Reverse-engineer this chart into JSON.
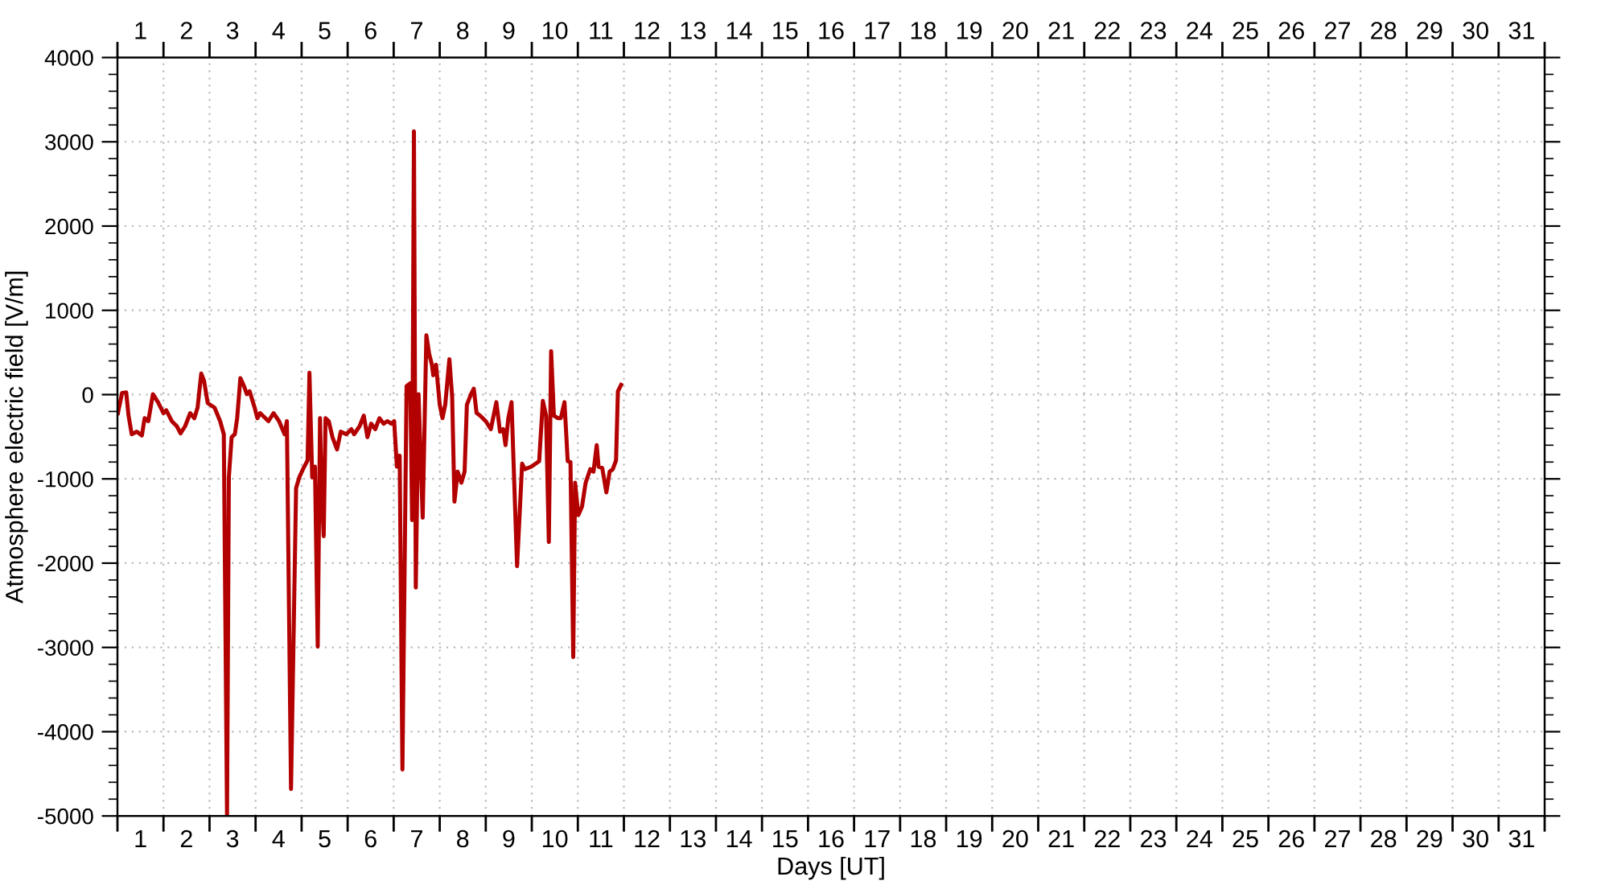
{
  "chart_data": {
    "type": "line",
    "xlabel": "Days [UT]",
    "ylabel": "Atmosphere electric field [V/m]",
    "x": [
      1.01,
      1.1,
      1.19,
      1.24,
      1.31,
      1.42,
      1.53,
      1.59,
      1.67,
      1.77,
      1.88,
      2.0,
      2.06,
      2.18,
      2.29,
      2.37,
      2.47,
      2.58,
      2.67,
      2.74,
      2.82,
      2.88,
      2.96,
      3.11,
      3.23,
      3.31,
      3.38,
      3.42,
      3.48,
      3.55,
      3.6,
      3.67,
      3.75,
      3.81,
      3.87,
      3.98,
      4.04,
      4.1,
      4.28,
      4.39,
      4.51,
      4.63,
      4.68,
      4.77,
      4.88,
      4.95,
      5.03,
      5.13,
      5.17,
      5.23,
      5.29,
      5.35,
      5.4,
      5.43,
      5.48,
      5.52,
      5.59,
      5.67,
      5.77,
      5.85,
      5.97,
      6.08,
      6.14,
      6.26,
      6.35,
      6.43,
      6.51,
      6.6,
      6.69,
      6.78,
      6.86,
      6.95,
      7.01,
      7.07,
      7.13,
      7.19,
      7.28,
      7.36,
      7.4,
      7.44,
      7.48,
      7.54,
      7.63,
      7.71,
      7.77,
      7.83,
      7.86,
      7.92,
      8.0,
      8.06,
      8.12,
      8.21,
      8.27,
      8.32,
      8.39,
      8.47,
      8.54,
      8.59,
      8.68,
      8.74,
      8.8,
      8.88,
      9.0,
      9.11,
      9.23,
      9.31,
      9.38,
      9.43,
      9.49,
      9.56,
      9.68,
      9.79,
      9.85,
      9.99,
      10.16,
      10.24,
      10.31,
      10.37,
      10.42,
      10.48,
      10.57,
      10.63,
      10.71,
      10.78,
      10.84,
      10.9,
      10.94,
      11.01,
      11.09,
      11.17,
      11.27,
      11.34,
      11.41,
      11.45,
      11.53,
      11.62,
      11.69,
      11.76,
      11.83,
      11.87,
      11.94
    ],
    "series": [
      {
        "color": "#b30000",
        "values": [
          -220,
          20,
          25,
          -245,
          -470,
          -440,
          -485,
          -280,
          -315,
          5,
          -90,
          -220,
          -185,
          -315,
          -375,
          -460,
          -375,
          -220,
          -280,
          -155,
          250,
          165,
          -100,
          -155,
          -315,
          -470,
          -4990,
          -980,
          -505,
          -470,
          -280,
          195,
          100,
          5,
          40,
          -155,
          -280,
          -220,
          -315,
          -220,
          -315,
          -470,
          -315,
          -4680,
          -1110,
          -980,
          -885,
          -780,
          260,
          -980,
          -855,
          -2990,
          -280,
          -1045,
          -1680,
          -280,
          -315,
          -505,
          -650,
          -440,
          -470,
          -410,
          -470,
          -375,
          -250,
          -505,
          -345,
          -410,
          -280,
          -345,
          -315,
          -345,
          -315,
          -855,
          -725,
          -4450,
          100,
          135,
          -1490,
          3125,
          -2290,
          5,
          -1460,
          705,
          485,
          355,
          230,
          355,
          -120,
          -280,
          -120,
          420,
          -25,
          -1270,
          -915,
          -1045,
          -915,
          -120,
          5,
          70,
          -218,
          -250,
          -315,
          -410,
          -90,
          -440,
          -410,
          -600,
          -280,
          -90,
          -2035,
          -820,
          -885,
          -855,
          -790,
          -75,
          -250,
          -1750,
          515,
          -250,
          -280,
          -280,
          -90,
          -790,
          -800,
          -3115,
          -1045,
          -1430,
          -1330,
          -1045,
          -885,
          -915,
          -600,
          -855,
          -870,
          -1160,
          -915,
          -885,
          -780,
          40,
          115
        ]
      }
    ],
    "xlim": [
      1,
      32
    ],
    "xticks": [
      {
        "value": 1,
        "label": null
      },
      {
        "value": 1.5,
        "label": "1"
      },
      {
        "value": 2,
        "label": null
      },
      {
        "value": 2.5,
        "label": "2"
      },
      {
        "value": 3,
        "label": null
      },
      {
        "value": 3.5,
        "label": "3"
      },
      {
        "value": 4,
        "label": null
      },
      {
        "value": 4.5,
        "label": "4"
      },
      {
        "value": 5,
        "label": null
      },
      {
        "value": 5.5,
        "label": "5"
      },
      {
        "value": 6,
        "label": null
      },
      {
        "value": 6.5,
        "label": "6"
      },
      {
        "value": 7,
        "label": null
      },
      {
        "value": 7.5,
        "label": "7"
      },
      {
        "value": 8,
        "label": null
      },
      {
        "value": 8.5,
        "label": "8"
      },
      {
        "value": 9,
        "label": null
      },
      {
        "value": 9.5,
        "label": "9"
      },
      {
        "value": 10,
        "label": null
      },
      {
        "value": 10.5,
        "label": "10"
      },
      {
        "value": 11,
        "label": null
      },
      {
        "value": 11.5,
        "label": "11"
      },
      {
        "value": 12,
        "label": null
      },
      {
        "value": 12.5,
        "label": "12"
      },
      {
        "value": 13,
        "label": null
      },
      {
        "value": 13.5,
        "label": "13"
      },
      {
        "value": 14,
        "label": null
      },
      {
        "value": 14.5,
        "label": "14"
      },
      {
        "value": 15,
        "label": null
      },
      {
        "value": 15.5,
        "label": "15"
      },
      {
        "value": 16,
        "label": null
      },
      {
        "value": 16.5,
        "label": "16"
      },
      {
        "value": 17,
        "label": null
      },
      {
        "value": 17.5,
        "label": "17"
      },
      {
        "value": 18,
        "label": null
      },
      {
        "value": 18.5,
        "label": "18"
      },
      {
        "value": 19,
        "label": null
      },
      {
        "value": 19.5,
        "label": "19"
      },
      {
        "value": 20,
        "label": null
      },
      {
        "value": 20.5,
        "label": "20"
      },
      {
        "value": 21,
        "label": null
      },
      {
        "value": 21.5,
        "label": "21"
      },
      {
        "value": 22,
        "label": null
      },
      {
        "value": 22.5,
        "label": "22"
      },
      {
        "value": 23,
        "label": null
      },
      {
        "value": 23.5,
        "label": "23"
      },
      {
        "value": 24,
        "label": null
      },
      {
        "value": 24.5,
        "label": "24"
      },
      {
        "value": 25,
        "label": null
      },
      {
        "value": 25.5,
        "label": "25"
      },
      {
        "value": 26,
        "label": null
      },
      {
        "value": 26.5,
        "label": "26"
      },
      {
        "value": 27,
        "label": null
      },
      {
        "value": 27.5,
        "label": "27"
      },
      {
        "value": 28,
        "label": null
      },
      {
        "value": 28.5,
        "label": "28"
      },
      {
        "value": 29,
        "label": null
      },
      {
        "value": 29.5,
        "label": "29"
      },
      {
        "value": 30,
        "label": null
      },
      {
        "value": 30.5,
        "label": "30"
      },
      {
        "value": 31,
        "label": null
      },
      {
        "value": 31.5,
        "label": "31"
      },
      {
        "value": 32,
        "label": null
      }
    ],
    "x2lim": [
      1,
      32
    ],
    "x2ticks": [
      {
        "value": 1,
        "label": null
      },
      {
        "value": 1.5,
        "label": "1"
      },
      {
        "value": 2,
        "label": null
      },
      {
        "value": 2.5,
        "label": "2"
      },
      {
        "value": 3,
        "label": null
      },
      {
        "value": 3.5,
        "label": "3"
      },
      {
        "value": 4,
        "label": null
      },
      {
        "value": 4.5,
        "label": "4"
      },
      {
        "value": 5,
        "label": null
      },
      {
        "value": 5.5,
        "label": "5"
      },
      {
        "value": 6,
        "label": null
      },
      {
        "value": 6.5,
        "label": "6"
      },
      {
        "value": 7,
        "label": null
      },
      {
        "value": 7.5,
        "label": "7"
      },
      {
        "value": 8,
        "label": null
      },
      {
        "value": 8.5,
        "label": "8"
      },
      {
        "value": 9,
        "label": null
      },
      {
        "value": 9.5,
        "label": "9"
      },
      {
        "value": 10,
        "label": null
      },
      {
        "value": 10.5,
        "label": "10"
      },
      {
        "value": 11,
        "label": null
      },
      {
        "value": 11.5,
        "label": "11"
      },
      {
        "value": 12,
        "label": null
      },
      {
        "value": 12.5,
        "label": "12"
      },
      {
        "value": 13,
        "label": null
      },
      {
        "value": 13.5,
        "label": "13"
      },
      {
        "value": 14,
        "label": null
      },
      {
        "value": 14.5,
        "label": "14"
      },
      {
        "value": 15,
        "label": null
      },
      {
        "value": 15.5,
        "label": "15"
      },
      {
        "value": 16,
        "label": null
      },
      {
        "value": 16.5,
        "label": "16"
      },
      {
        "value": 17,
        "label": null
      },
      {
        "value": 17.5,
        "label": "17"
      },
      {
        "value": 18,
        "label": null
      },
      {
        "value": 18.5,
        "label": "18"
      },
      {
        "value": 19,
        "label": null
      },
      {
        "value": 19.5,
        "label": "19"
      },
      {
        "value": 20,
        "label": null
      },
      {
        "value": 20.5,
        "label": "20"
      },
      {
        "value": 21,
        "label": null
      },
      {
        "value": 21.5,
        "label": "21"
      },
      {
        "value": 22,
        "label": null
      },
      {
        "value": 22.5,
        "label": "22"
      },
      {
        "value": 23,
        "label": null
      },
      {
        "value": 23.5,
        "label": "23"
      },
      {
        "value": 24,
        "label": null
      },
      {
        "value": 24.5,
        "label": "24"
      },
      {
        "value": 25,
        "label": null
      },
      {
        "value": 25.5,
        "label": "25"
      },
      {
        "value": 26,
        "label": null
      },
      {
        "value": 26.5,
        "label": "26"
      },
      {
        "value": 27,
        "label": null
      },
      {
        "value": 27.5,
        "label": "27"
      },
      {
        "value": 28,
        "label": null
      },
      {
        "value": 28.5,
        "label": "28"
      },
      {
        "value": 29,
        "label": null
      },
      {
        "value": 29.5,
        "label": "29"
      },
      {
        "value": 30,
        "label": null
      },
      {
        "value": 30.5,
        "label": "30"
      },
      {
        "value": 31,
        "label": null
      },
      {
        "value": 31.5,
        "label": "31"
      },
      {
        "value": 32,
        "label": null
      }
    ],
    "ylim": [
      -5000,
      4000
    ],
    "yticks": [
      -5000,
      -4000,
      -3000,
      -2000,
      -1000,
      0,
      1000,
      2000,
      3000,
      4000
    ],
    "grid": true,
    "marker": "none",
    "line_style": "solid"
  }
}
